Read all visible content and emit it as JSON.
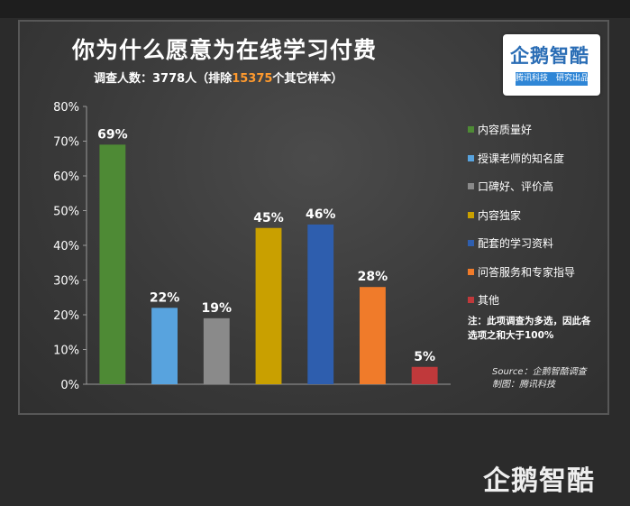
{
  "header": {
    "title": "你为什么愿意为在线学习付费",
    "subtitle_prefix": "调查人数：3778人（排除",
    "subtitle_highlight": "15375",
    "subtitle_suffix": "个其它样本）"
  },
  "logo": {
    "mark": "企鹅智酷",
    "tagline": "腾讯科技　研究出品"
  },
  "note": "注：此项调查为多选，因此各选项之和大于100%",
  "source": {
    "line1": "Source：企鹅智酷调查",
    "line2": "制图：腾讯科技"
  },
  "watermark": "企鹅智酷",
  "colors": {
    "background": "#2b2b2b",
    "highlight": "#ff9a2e",
    "text": "#ffffff"
  },
  "chart_data": {
    "type": "bar",
    "categories": [
      "内容质量好",
      "授课老师的知名度",
      "口碑好、评价高",
      "内容独家",
      "配套的学习资料",
      "问答服务和专家指导",
      "其他"
    ],
    "values": [
      69,
      22,
      19,
      45,
      46,
      28,
      5
    ],
    "value_labels": [
      "69%",
      "22%",
      "19%",
      "45%",
      "46%",
      "28%",
      "5%"
    ],
    "colors": [
      "#4e8a35",
      "#58a3de",
      "#8a8a8a",
      "#c9a000",
      "#2e5eae",
      "#f07b2a",
      "#c0393b"
    ],
    "yticks": [
      "0%",
      "10%",
      "20%",
      "30%",
      "40%",
      "50%",
      "60%",
      "70%",
      "80%"
    ],
    "ylim": [
      0,
      80
    ],
    "legend_position": "right",
    "grid": false
  }
}
